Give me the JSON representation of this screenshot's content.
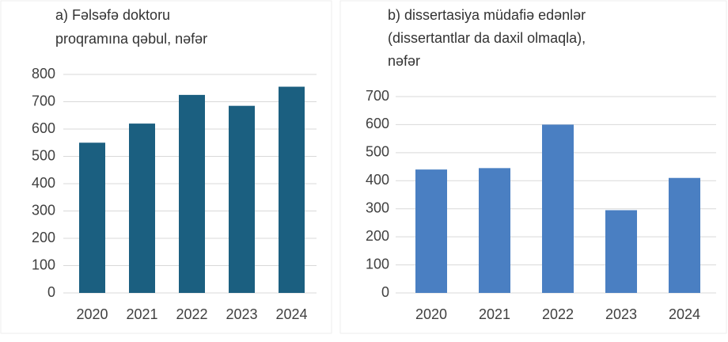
{
  "chart_data": [
    {
      "type": "bar",
      "title": [
        "a) Fəlsəfə doktoru",
        "proqramına qəbul, nəfər"
      ],
      "categories": [
        "2020",
        "2021",
        "2022",
        "2023",
        "2024"
      ],
      "values": [
        550,
        620,
        725,
        685,
        755
      ],
      "color": "#1b5f80",
      "ylim": [
        0,
        800
      ],
      "yticks": [
        0,
        100,
        200,
        300,
        400,
        500,
        600,
        700,
        800
      ],
      "grid": true
    },
    {
      "type": "bar",
      "title": [
        "b) dissertasiya müdafiə edənlər",
        "(dissertantlar da daxil olmaqla),",
        "nəfər"
      ],
      "categories": [
        "2020",
        "2021",
        "2022",
        "2023",
        "2024"
      ],
      "values": [
        440,
        445,
        600,
        295,
        410
      ],
      "color": "#4a7fc2",
      "ylim": [
        0,
        700
      ],
      "yticks": [
        0,
        100,
        200,
        300,
        400,
        500,
        600,
        700
      ],
      "grid": true
    }
  ]
}
